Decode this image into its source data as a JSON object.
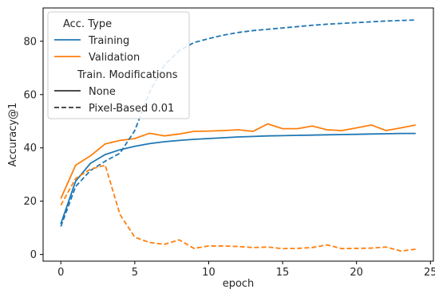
{
  "chart_data": {
    "type": "line",
    "title": "",
    "xlabel": "epoch",
    "ylabel": "Accuracy@1",
    "xlim": [
      -1.2,
      25.2
    ],
    "ylim": [
      -2.5,
      92.5
    ],
    "xticks": [
      0,
      5,
      10,
      15,
      20,
      25
    ],
    "yticks": [
      0,
      20,
      40,
      60,
      80
    ],
    "grid": false,
    "legend_position": "top-left",
    "legend": {
      "color_title": "Acc. Type",
      "color_entries": [
        {
          "name": "Training",
          "color": "#1f77b4"
        },
        {
          "name": "Validation",
          "color": "#ff7f0e"
        }
      ],
      "style_title": "Train. Modifications",
      "style_entries": [
        {
          "name": "None",
          "dash": "solid"
        },
        {
          "name": "Pixel-Based 0.01",
          "dash": "dashed"
        }
      ]
    },
    "x": [
      0,
      1,
      2,
      3,
      4,
      5,
      6,
      7,
      8,
      9,
      10,
      11,
      12,
      13,
      14,
      15,
      16,
      17,
      18,
      19,
      20,
      21,
      22,
      23,
      24
    ],
    "series": [
      {
        "acc_type": "Training",
        "modification": "None",
        "color": "#1f77b4",
        "dash": "solid",
        "values": [
          11.5,
          27.5,
          34.2,
          37.5,
          39.3,
          40.6,
          41.6,
          42.3,
          42.8,
          43.2,
          43.5,
          43.8,
          44.1,
          44.3,
          44.5,
          44.6,
          44.7,
          44.8,
          44.9,
          45.0,
          45.1,
          45.2,
          45.3,
          45.4,
          45.4
        ]
      },
      {
        "acc_type": "Validation",
        "modification": "None",
        "color": "#ff7f0e",
        "dash": "solid",
        "values": [
          21.0,
          33.5,
          37.0,
          41.5,
          42.8,
          43.5,
          45.5,
          44.5,
          45.2,
          46.2,
          46.3,
          46.5,
          46.8,
          46.2,
          49.0,
          47.2,
          47.2,
          48.2,
          46.8,
          46.5,
          47.5,
          48.6,
          46.5,
          47.5,
          48.6
        ]
      },
      {
        "acc_type": "Training",
        "modification": "Pixel-Based 0.01",
        "color": "#1f77b4",
        "dash": "dashed",
        "values": [
          10.5,
          25.5,
          31.5,
          35.0,
          38.0,
          46.5,
          61.0,
          71.0,
          76.5,
          79.5,
          81.0,
          82.3,
          83.3,
          84.0,
          84.5,
          85.0,
          85.5,
          86.0,
          86.4,
          86.7,
          87.0,
          87.3,
          87.6,
          87.8,
          88.0
        ]
      },
      {
        "acc_type": "Validation",
        "modification": "Pixel-Based 0.01",
        "color": "#ff7f0e",
        "dash": "dashed",
        "values": [
          18.5,
          28.5,
          32.0,
          33.5,
          15.0,
          6.5,
          4.5,
          3.8,
          5.5,
          2.3,
          3.2,
          3.2,
          3.0,
          2.6,
          2.8,
          2.2,
          2.3,
          2.6,
          3.6,
          2.2,
          2.3,
          2.4,
          2.8,
          1.3,
          2.0
        ]
      }
    ]
  }
}
